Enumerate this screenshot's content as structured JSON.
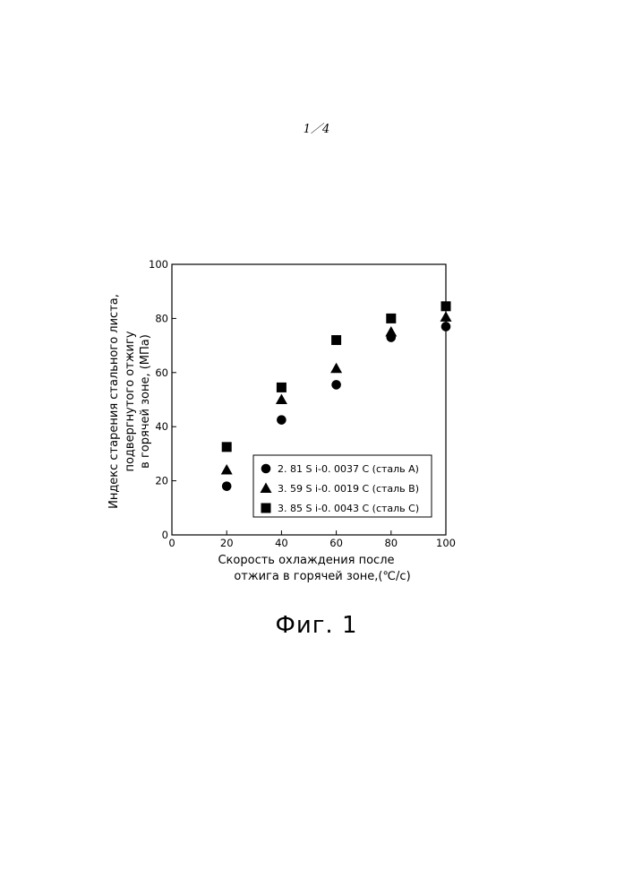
{
  "page": {
    "page_number": "1／4",
    "figure_caption": "Фиг. 1"
  },
  "chart_data": {
    "type": "scatter",
    "title": "",
    "xlabel_lines": [
      "Скорость охлаждения после",
      "отжига в горячей зоне,(℃/с)"
    ],
    "ylabel_lines": [
      "Индекс старения стального листа,",
      "подвергнутого отжигу",
      "в горячей зоне, (МПа)"
    ],
    "xlim": [
      0,
      100
    ],
    "ylim": [
      0,
      100
    ],
    "x_ticks": [
      0,
      20,
      40,
      60,
      80,
      100
    ],
    "y_ticks": [
      0,
      20,
      40,
      60,
      80,
      100
    ],
    "grid": false,
    "legend_position": "lower-right",
    "series": [
      {
        "name": "2. 81 S i-0. 0037 C (сталь A)",
        "marker": "circle",
        "x": [
          20,
          40,
          60,
          80,
          100
        ],
        "y": [
          18,
          42.5,
          55.5,
          73,
          77
        ]
      },
      {
        "name": "3. 59 S i-0. 0019 C (сталь B)",
        "marker": "triangle",
        "x": [
          20,
          40,
          60,
          80,
          100
        ],
        "y": [
          24,
          50,
          61.5,
          75,
          80.5
        ]
      },
      {
        "name": "3. 85 S i-0. 0043 C (сталь C)",
        "marker": "square",
        "x": [
          20,
          40,
          60,
          80,
          100
        ],
        "y": [
          32.5,
          54.5,
          72,
          80,
          84.5
        ]
      }
    ],
    "colors": {
      "marker": "#000000",
      "axis": "#000000"
    }
  }
}
